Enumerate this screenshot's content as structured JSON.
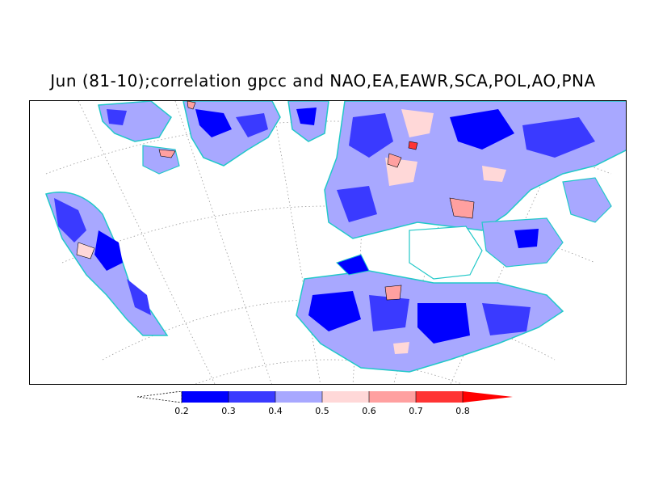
{
  "title": "Jun (81-10);correlation gpcc and NAO,EA,EAWR,SCA,POL,AO,PNA",
  "colorbar": {
    "levels": [
      "0.2",
      "0.3",
      "0.4",
      "0.5",
      "0.6",
      "0.7",
      "0.8"
    ],
    "colors": [
      "#0000ff",
      "#3a3aff",
      "#a8a8ff",
      "#ffd8d8",
      "#ffa0a0",
      "#ff3434",
      "#ff0000"
    ]
  },
  "map": {
    "land_outline_color": "#21c8c8",
    "grid_color": "#999999",
    "contour_color": "#000000"
  }
}
